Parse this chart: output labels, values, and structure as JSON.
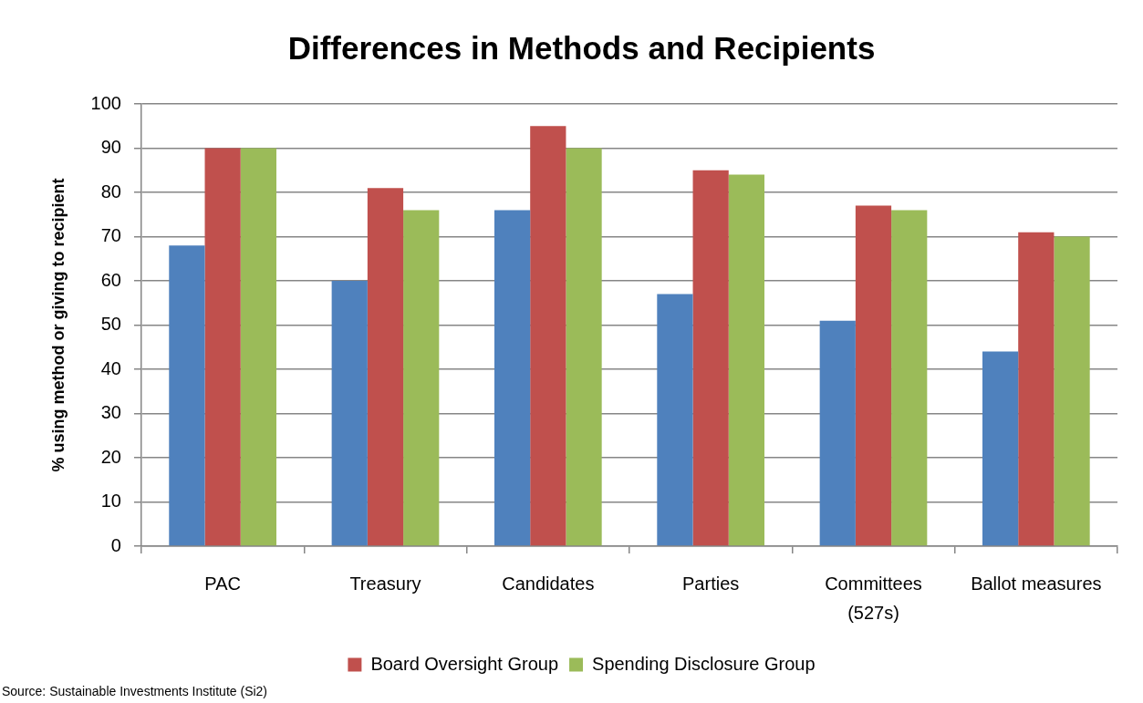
{
  "chart_data": {
    "type": "bar",
    "title": "Differences in Methods and Recipients",
    "ylabel": "% using method or giving to recipient",
    "categories": [
      "PAC",
      "Treasury",
      "Candidates",
      "Parties",
      "Committees (527s)",
      "Ballot measures"
    ],
    "series": [
      {
        "color": "#4f81bd",
        "values": [
          68,
          60,
          76,
          57,
          51,
          44
        ]
      },
      {
        "name": "Board Oversight Group",
        "color": "#c0504d",
        "values": [
          90,
          81,
          95,
          85,
          77,
          71
        ]
      },
      {
        "name": "Spending Disclosure Group",
        "color": "#9bbb59",
        "values": [
          90,
          76,
          90,
          84,
          76,
          70
        ]
      }
    ],
    "ylim": [
      0,
      100
    ],
    "yticks": [
      0,
      10,
      20,
      30,
      40,
      50,
      60,
      70,
      80,
      90,
      100
    ],
    "grid": "y",
    "legend": "bottom",
    "annotations": [
      "Source: Sustainable Investments Institute (Si2)"
    ]
  }
}
